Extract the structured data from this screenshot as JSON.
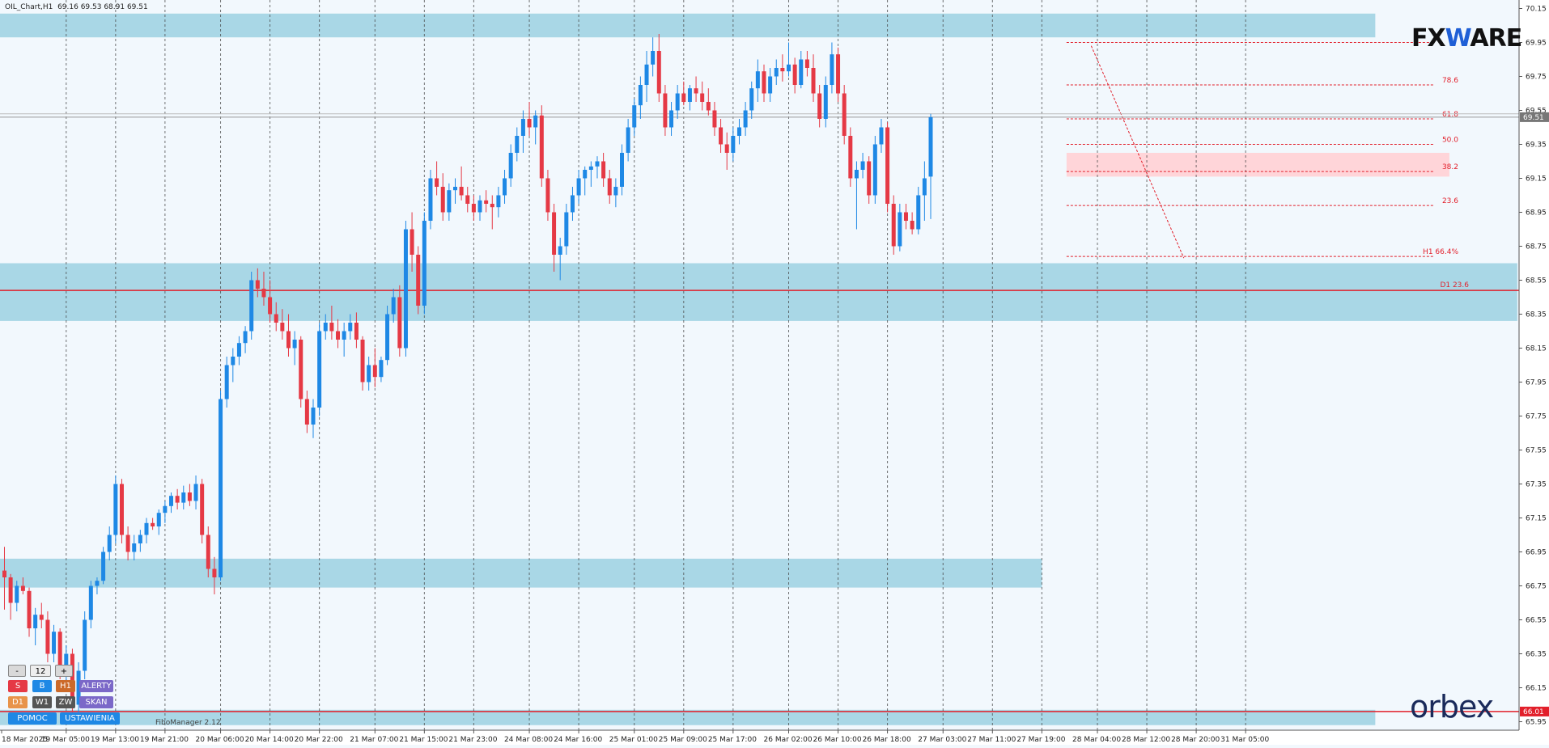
{
  "header": {
    "symbol": "OIL_Chart,H1",
    "ohlc": "69.16 69.53 68.91 69.51"
  },
  "brand": {
    "logo_top_prefix": "FX",
    "logo_top_accent": "W",
    "logo_top_suffix": "ARE",
    "logo_bottom": "orbex"
  },
  "indicator_name": "FiboManager 2.12",
  "panel": {
    "minus": "-",
    "count": "12",
    "plus": "+",
    "s": "S",
    "b": "B",
    "h1": "H1",
    "alerty": "ALERTY",
    "d1": "D1",
    "w1": "W1",
    "zw": "ZW",
    "skan": "SKAN",
    "pomoc": "POMOC",
    "ustawienia": "USTAWIENIA"
  },
  "colors": {
    "background": "#f2f8fd",
    "bull": "#1e88e5",
    "bear": "#e53945",
    "zone": "#a9d7e6",
    "fib_zone": "#ffd5d9",
    "price_line": "#e21f2a"
  },
  "chart_data": {
    "type": "candlestick",
    "timeframe": "H1",
    "ylim": [
      65.9,
      70.2
    ],
    "yticks": [
      "70.15",
      "69.95",
      "69.75",
      "69.55",
      "69.35",
      "69.15",
      "68.95",
      "68.75",
      "68.55",
      "68.35",
      "68.15",
      "67.95",
      "67.75",
      "67.55",
      "67.35",
      "67.15",
      "66.95",
      "66.75",
      "66.55",
      "66.35",
      "66.15",
      "65.95"
    ],
    "xticks": [
      {
        "label": "18 Mar 2025",
        "i": 0
      },
      {
        "label": "19 Mar 05:00",
        "i": 10
      },
      {
        "label": "19 Mar 13:00",
        "i": 18
      },
      {
        "label": "19 Mar 21:00",
        "i": 26
      },
      {
        "label": "20 Mar 06:00",
        "i": 35
      },
      {
        "label": "20 Mar 14:00",
        "i": 43
      },
      {
        "label": "20 Mar 22:00",
        "i": 51
      },
      {
        "label": "21 Mar 07:00",
        "i": 60
      },
      {
        "label": "21 Mar 15:00",
        "i": 68
      },
      {
        "label": "21 Mar 23:00",
        "i": 76
      },
      {
        "label": "24 Mar 08:00",
        "i": 85
      },
      {
        "label": "24 Mar 16:00",
        "i": 93
      },
      {
        "label": "25 Mar 01:00",
        "i": 102
      },
      {
        "label": "25 Mar 09:00",
        "i": 110
      },
      {
        "label": "25 Mar 17:00",
        "i": 118
      },
      {
        "label": "26 Mar 02:00",
        "i": 127
      },
      {
        "label": "26 Mar 10:00",
        "i": 135
      },
      {
        "label": "26 Mar 18:00",
        "i": 143
      },
      {
        "label": "27 Mar 03:00",
        "i": 152
      },
      {
        "label": "27 Mar 11:00",
        "i": 160
      },
      {
        "label": "27 Mar 19:00",
        "i": 168
      },
      {
        "label": "28 Mar 04:00",
        "i": 177
      },
      {
        "label": "28 Mar 12:00",
        "i": 185
      },
      {
        "label": "28 Mar 20:00",
        "i": 193
      },
      {
        "label": "31 Mar 05:00",
        "i": 201
      }
    ],
    "current_price": "69.51",
    "bottom_price": "66.01",
    "zones": [
      {
        "y1": 70.12,
        "y2": 69.98,
        "i1": -1,
        "i2": 222
      },
      {
        "y1": 68.65,
        "y2": 68.31,
        "i1": -1,
        "i2": 245
      },
      {
        "y1": 66.91,
        "y2": 66.74,
        "i1": -1,
        "i2": 168
      },
      {
        "y1": 66.02,
        "y2": 65.93,
        "i1": -1,
        "i2": 222
      }
    ],
    "horizontal_lines": [
      {
        "price": 68.49,
        "label": "D1 23.6"
      }
    ],
    "fib_zone": {
      "y1": 69.3,
      "y2": 69.16,
      "i1": 172,
      "i2": 234
    },
    "fib_levels": [
      {
        "price": 69.95,
        "label": ""
      },
      {
        "price": 69.7,
        "label": "78.6"
      },
      {
        "price": 69.5,
        "label": "61.8"
      },
      {
        "price": 69.35,
        "label": "50.0"
      },
      {
        "price": 69.19,
        "label": "38.2"
      },
      {
        "price": 68.99,
        "label": "23.6"
      },
      {
        "price": 68.69,
        "label": "H1 66.4%"
      }
    ],
    "candles": [
      [
        66.84,
        66.98,
        66.61,
        66.8
      ],
      [
        66.8,
        66.82,
        66.55,
        66.65
      ],
      [
        66.65,
        66.78,
        66.6,
        66.75
      ],
      [
        66.75,
        66.8,
        66.7,
        66.72
      ],
      [
        66.72,
        66.74,
        66.45,
        66.5
      ],
      [
        66.5,
        66.62,
        66.4,
        66.58
      ],
      [
        66.58,
        66.65,
        66.5,
        66.55
      ],
      [
        66.55,
        66.6,
        66.3,
        66.35
      ],
      [
        66.35,
        66.52,
        66.3,
        66.48
      ],
      [
        66.48,
        66.5,
        66.2,
        66.25
      ],
      [
        66.25,
        66.4,
        66.15,
        66.35
      ],
      [
        66.35,
        66.38,
        66.0,
        66.05
      ],
      [
        66.05,
        66.3,
        66.0,
        66.25
      ],
      [
        66.25,
        66.6,
        66.2,
        66.55
      ],
      [
        66.55,
        66.78,
        66.5,
        66.75
      ],
      [
        66.75,
        66.8,
        66.7,
        66.78
      ],
      [
        66.78,
        66.98,
        66.76,
        66.95
      ],
      [
        66.95,
        67.1,
        66.9,
        67.05
      ],
      [
        67.05,
        67.4,
        67.0,
        67.35
      ],
      [
        67.35,
        67.38,
        67.0,
        67.05
      ],
      [
        67.05,
        67.1,
        66.9,
        66.95
      ],
      [
        66.95,
        67.05,
        66.9,
        67.0
      ],
      [
        67.0,
        67.08,
        66.95,
        67.05
      ],
      [
        67.05,
        67.15,
        67.0,
        67.12
      ],
      [
        67.12,
        67.15,
        67.08,
        67.1
      ],
      [
        67.1,
        67.2,
        67.05,
        67.18
      ],
      [
        67.18,
        67.25,
        67.12,
        67.22
      ],
      [
        67.22,
        67.3,
        67.18,
        67.28
      ],
      [
        67.28,
        67.32,
        67.2,
        67.24
      ],
      [
        67.24,
        67.34,
        67.2,
        67.3
      ],
      [
        67.3,
        67.35,
        67.22,
        67.25
      ],
      [
        67.25,
        67.4,
        67.2,
        67.35
      ],
      [
        67.35,
        67.38,
        67.0,
        67.05
      ],
      [
        67.05,
        67.1,
        66.8,
        66.85
      ],
      [
        66.85,
        66.92,
        66.7,
        66.8
      ],
      [
        66.8,
        67.9,
        66.78,
        67.85
      ],
      [
        67.85,
        68.1,
        67.8,
        68.05
      ],
      [
        68.05,
        68.15,
        67.95,
        68.1
      ],
      [
        68.1,
        68.22,
        68.05,
        68.18
      ],
      [
        68.18,
        68.28,
        68.12,
        68.25
      ],
      [
        68.25,
        68.6,
        68.2,
        68.55
      ],
      [
        68.55,
        68.62,
        68.45,
        68.5
      ],
      [
        68.5,
        68.6,
        68.4,
        68.45
      ],
      [
        68.45,
        68.55,
        68.3,
        68.35
      ],
      [
        68.35,
        68.42,
        68.25,
        68.3
      ],
      [
        68.3,
        68.38,
        68.2,
        68.25
      ],
      [
        68.25,
        68.35,
        68.1,
        68.15
      ],
      [
        68.15,
        68.25,
        68.05,
        68.2
      ],
      [
        68.2,
        68.22,
        67.8,
        67.85
      ],
      [
        67.85,
        67.9,
        67.65,
        67.7
      ],
      [
        67.7,
        67.85,
        67.62,
        67.8
      ],
      [
        67.8,
        68.3,
        67.75,
        68.25
      ],
      [
        68.25,
        68.35,
        68.2,
        68.3
      ],
      [
        68.3,
        68.4,
        68.2,
        68.25
      ],
      [
        68.25,
        68.32,
        68.15,
        68.2
      ],
      [
        68.2,
        68.3,
        68.1,
        68.25
      ],
      [
        68.25,
        68.35,
        68.2,
        68.3
      ],
      [
        68.3,
        68.36,
        68.15,
        68.2
      ],
      [
        68.2,
        68.22,
        67.9,
        67.95
      ],
      [
        67.95,
        68.1,
        67.9,
        68.05
      ],
      [
        68.05,
        68.15,
        67.92,
        67.98
      ],
      [
        67.98,
        68.1,
        67.95,
        68.08
      ],
      [
        68.08,
        68.4,
        68.05,
        68.35
      ],
      [
        68.35,
        68.5,
        68.3,
        68.45
      ],
      [
        68.45,
        68.52,
        68.1,
        68.15
      ],
      [
        68.15,
        68.9,
        68.1,
        68.85
      ],
      [
        68.85,
        68.95,
        68.6,
        68.7
      ],
      [
        68.7,
        68.75,
        68.35,
        68.4
      ],
      [
        68.4,
        68.95,
        68.35,
        68.9
      ],
      [
        68.9,
        69.2,
        68.85,
        69.15
      ],
      [
        69.15,
        69.25,
        69.05,
        69.1
      ],
      [
        69.1,
        69.18,
        68.9,
        68.95
      ],
      [
        68.95,
        69.12,
        68.9,
        69.08
      ],
      [
        69.08,
        69.15,
        69.0,
        69.1
      ],
      [
        69.1,
        69.22,
        69.02,
        69.05
      ],
      [
        69.05,
        69.1,
        68.95,
        69.0
      ],
      [
        69.0,
        69.05,
        68.9,
        68.95
      ],
      [
        68.95,
        69.05,
        68.9,
        69.02
      ],
      [
        69.02,
        69.08,
        68.95,
        69.0
      ],
      [
        69.0,
        69.05,
        68.85,
        68.98
      ],
      [
        68.98,
        69.1,
        68.92,
        69.05
      ],
      [
        69.05,
        69.2,
        69.0,
        69.15
      ],
      [
        69.15,
        69.35,
        69.1,
        69.3
      ],
      [
        69.3,
        69.45,
        69.25,
        69.4
      ],
      [
        69.4,
        69.55,
        69.3,
        69.5
      ],
      [
        69.5,
        69.6,
        69.4,
        69.45
      ],
      [
        69.45,
        69.55,
        69.35,
        69.52
      ],
      [
        69.52,
        69.58,
        69.1,
        69.15
      ],
      [
        69.15,
        69.2,
        68.9,
        68.95
      ],
      [
        68.95,
        69.0,
        68.6,
        68.7
      ],
      [
        68.7,
        68.8,
        68.55,
        68.75
      ],
      [
        68.75,
        69.0,
        68.7,
        68.95
      ],
      [
        68.95,
        69.1,
        68.9,
        69.05
      ],
      [
        69.05,
        69.2,
        69.0,
        69.15
      ],
      [
        69.15,
        69.22,
        69.05,
        69.2
      ],
      [
        69.2,
        69.25,
        69.1,
        69.22
      ],
      [
        69.22,
        69.28,
        69.15,
        69.25
      ],
      [
        69.25,
        69.3,
        69.1,
        69.15
      ],
      [
        69.15,
        69.2,
        69.0,
        69.05
      ],
      [
        69.05,
        69.15,
        68.98,
        69.1
      ],
      [
        69.1,
        69.35,
        69.05,
        69.3
      ],
      [
        69.3,
        69.5,
        69.25,
        69.45
      ],
      [
        69.45,
        69.62,
        69.4,
        69.58
      ],
      [
        69.58,
        69.75,
        69.5,
        69.7
      ],
      [
        69.7,
        69.9,
        69.6,
        69.82
      ],
      [
        69.82,
        69.98,
        69.75,
        69.9
      ],
      [
        69.9,
        70.0,
        69.6,
        69.65
      ],
      [
        69.65,
        69.7,
        69.4,
        69.45
      ],
      [
        69.45,
        69.6,
        69.4,
        69.55
      ],
      [
        69.55,
        69.7,
        69.5,
        69.65
      ],
      [
        69.65,
        69.72,
        69.58,
        69.6
      ],
      [
        69.6,
        69.7,
        69.55,
        69.68
      ],
      [
        69.68,
        69.75,
        69.6,
        69.65
      ],
      [
        69.65,
        69.72,
        69.55,
        69.6
      ],
      [
        69.6,
        69.68,
        69.52,
        69.55
      ],
      [
        69.55,
        69.6,
        69.4,
        69.45
      ],
      [
        69.45,
        69.5,
        69.3,
        69.35
      ],
      [
        69.35,
        69.42,
        69.2,
        69.3
      ],
      [
        69.3,
        69.45,
        69.25,
        69.4
      ],
      [
        69.4,
        69.5,
        69.35,
        69.45
      ],
      [
        69.45,
        69.6,
        69.4,
        69.55
      ],
      [
        69.55,
        69.72,
        69.5,
        69.68
      ],
      [
        69.68,
        69.85,
        69.6,
        69.78
      ],
      [
        69.78,
        69.82,
        69.6,
        69.65
      ],
      [
        69.65,
        69.8,
        69.6,
        69.75
      ],
      [
        69.75,
        69.85,
        69.7,
        69.8
      ],
      [
        69.8,
        69.88,
        69.72,
        69.78
      ],
      [
        69.78,
        69.95,
        69.75,
        69.82
      ],
      [
        69.82,
        69.86,
        69.65,
        69.7
      ],
      [
        69.7,
        69.9,
        69.68,
        69.85
      ],
      [
        69.85,
        69.9,
        69.75,
        69.8
      ],
      [
        69.8,
        69.88,
        69.6,
        69.65
      ],
      [
        69.65,
        69.7,
        69.45,
        69.5
      ],
      [
        69.5,
        69.75,
        69.45,
        69.7
      ],
      [
        69.7,
        69.95,
        69.65,
        69.88
      ],
      [
        69.88,
        69.92,
        69.6,
        69.65
      ],
      [
        69.65,
        69.7,
        69.35,
        69.4
      ],
      [
        69.4,
        69.45,
        69.1,
        69.15
      ],
      [
        69.15,
        69.25,
        68.85,
        69.2
      ],
      [
        69.2,
        69.3,
        69.15,
        69.25
      ],
      [
        69.25,
        69.28,
        69.0,
        69.05
      ],
      [
        69.05,
        69.4,
        69.0,
        69.35
      ],
      [
        69.35,
        69.5,
        69.3,
        69.45
      ],
      [
        69.45,
        69.48,
        68.95,
        69.0
      ],
      [
        69.0,
        69.05,
        68.7,
        68.75
      ],
      [
        68.75,
        69.0,
        68.72,
        68.95
      ],
      [
        68.95,
        69.0,
        68.85,
        68.9
      ],
      [
        68.9,
        68.95,
        68.82,
        68.85
      ],
      [
        68.85,
        69.1,
        68.82,
        69.05
      ],
      [
        69.05,
        69.25,
        68.9,
        69.15
      ],
      [
        69.16,
        69.53,
        68.91,
        69.51
      ]
    ]
  }
}
